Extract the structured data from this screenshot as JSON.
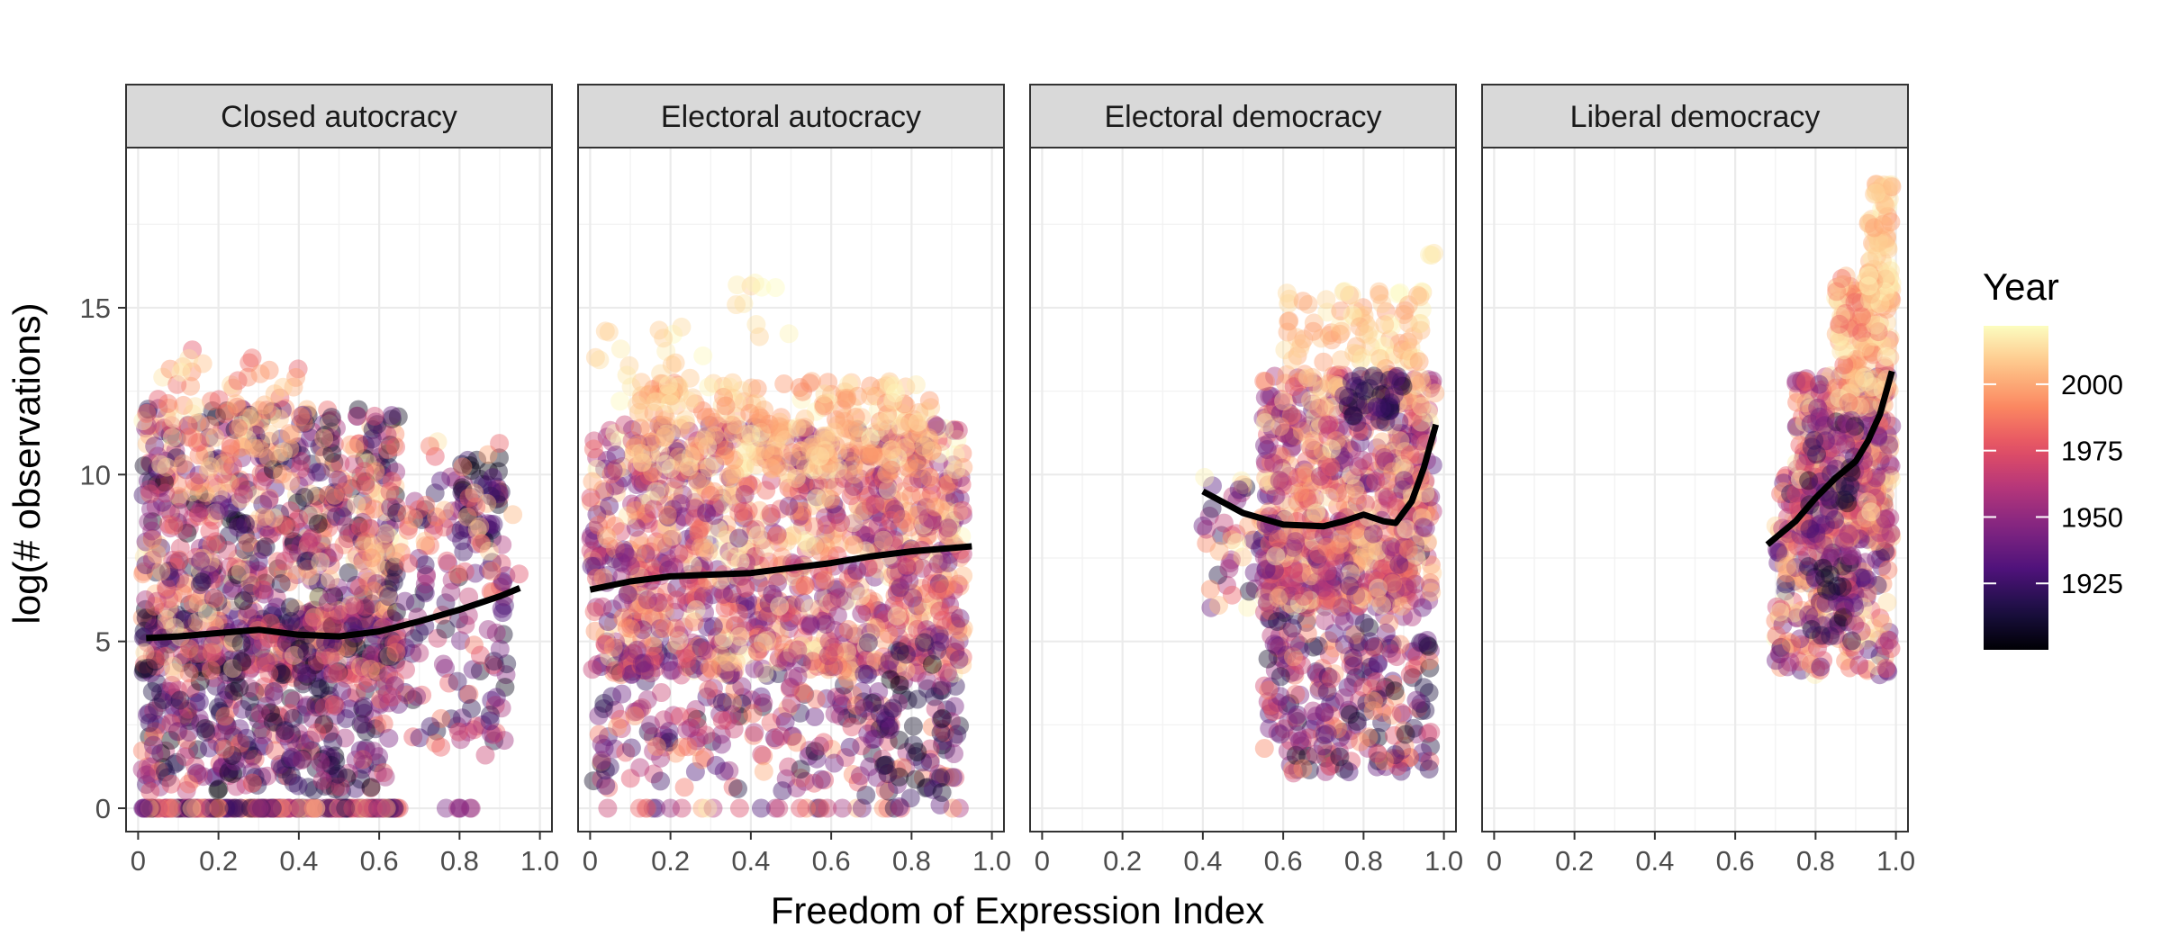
{
  "chart_data": {
    "type": "scatter",
    "xlabel": "Freedom of Expression Index",
    "ylabel": "log(# observations)",
    "xlim": [
      -0.03,
      1.03
    ],
    "ylim": [
      -0.7,
      19.8
    ],
    "x_ticks": [
      0,
      0.2,
      0.4,
      0.6,
      0.8,
      1.0
    ],
    "x_tick_labels": [
      "0",
      "0.2",
      "0.4",
      "0.6",
      "0.8",
      "1.0"
    ],
    "y_ticks": [
      0,
      5,
      10,
      15
    ],
    "y_tick_labels": [
      "0",
      "5",
      "10",
      "15"
    ],
    "grid": true,
    "legend": {
      "title": "Year",
      "position": "right",
      "type": "colorbar",
      "palette": "magma",
      "range": [
        1900,
        2022
      ],
      "ticks": [
        1925,
        1950,
        1975,
        2000
      ],
      "tick_labels": [
        "1925",
        "1950",
        "1975",
        "2000"
      ]
    },
    "colors": {
      "smooth_line": "#000000",
      "strip_fill": "#d9d9d9",
      "panel_border": "#333333",
      "grid": "#ebebeb"
    },
    "panels": [
      {
        "label": "Closed autocracy",
        "x_range": [
          0.01,
          0.95
        ],
        "smooth": [
          [
            0.02,
            5.1
          ],
          [
            0.1,
            5.15
          ],
          [
            0.2,
            5.25
          ],
          [
            0.3,
            5.35
          ],
          [
            0.4,
            5.2
          ],
          [
            0.5,
            5.15
          ],
          [
            0.6,
            5.3
          ],
          [
            0.7,
            5.6
          ],
          [
            0.8,
            5.95
          ],
          [
            0.9,
            6.35
          ],
          [
            0.95,
            6.6
          ]
        ],
        "clusters": [
          {
            "x": [
              0.01,
              0.65
            ],
            "y": [
              0,
              0
            ],
            "n": 240,
            "year": [
              1910,
              2020
            ]
          },
          {
            "x": [
              0.01,
              0.62
            ],
            "y": [
              0.5,
              6
            ],
            "n": 500,
            "year": [
              1900,
              1990
            ]
          },
          {
            "x": [
              0.01,
              0.65
            ],
            "y": [
              4,
              12
            ],
            "n": 750,
            "year": [
              1900,
              2020
            ]
          },
          {
            "x": [
              0.05,
              0.4
            ],
            "y": [
              10,
              13.8
            ],
            "n": 70,
            "year": [
              1975,
              2020
            ]
          },
          {
            "x": [
              0.62,
              0.92
            ],
            "y": [
              1.5,
              10
            ],
            "n": 160,
            "year": [
              1905,
              1990
            ]
          },
          {
            "x": [
              0.8,
              0.9
            ],
            "y": [
              8,
              10.6
            ],
            "n": 30,
            "year": [
              1900,
              1935
            ]
          },
          {
            "x": [
              0.75,
              0.84
            ],
            "y": [
              0,
              0
            ],
            "n": 6,
            "year": [
              1925,
              1965
            ]
          },
          {
            "x": [
              0.55,
              0.95
            ],
            "y": [
              7,
              11
            ],
            "n": 40,
            "year": [
              1970,
              2015
            ]
          }
        ]
      },
      {
        "label": "Electoral autocracy",
        "x_range": [
          0.0,
          0.95
        ],
        "smooth": [
          [
            0.0,
            6.55
          ],
          [
            0.1,
            6.8
          ],
          [
            0.2,
            6.95
          ],
          [
            0.3,
            7.0
          ],
          [
            0.4,
            7.05
          ],
          [
            0.5,
            7.2
          ],
          [
            0.6,
            7.35
          ],
          [
            0.7,
            7.55
          ],
          [
            0.8,
            7.7
          ],
          [
            0.9,
            7.8
          ],
          [
            0.95,
            7.85
          ]
        ],
        "clusters": [
          {
            "x": [
              0.0,
              0.92
            ],
            "y": [
              0,
              0
            ],
            "n": 30,
            "year": [
              1910,
              2020
            ]
          },
          {
            "x": [
              0.0,
              0.92
            ],
            "y": [
              0.5,
              5
            ],
            "n": 300,
            "year": [
              1905,
              2000
            ]
          },
          {
            "x": [
              0.0,
              0.93
            ],
            "y": [
              4,
              11.5
            ],
            "n": 1200,
            "year": [
              1930,
              2022
            ]
          },
          {
            "x": [
              0.1,
              0.85
            ],
            "y": [
              10,
              12.8
            ],
            "n": 250,
            "year": [
              1990,
              2022
            ]
          },
          {
            "x": [
              0.35,
              0.5
            ],
            "y": [
              14,
              16
            ],
            "n": 10,
            "year": [
              2008,
              2022
            ]
          },
          {
            "x": [
              0.0,
              0.3
            ],
            "y": [
              12,
              14.5
            ],
            "n": 25,
            "year": [
              2005,
              2022
            ]
          },
          {
            "x": [
              0.68,
              0.88
            ],
            "y": [
              0,
              5
            ],
            "n": 50,
            "year": [
              1900,
              1945
            ]
          }
        ]
      },
      {
        "label": "Electoral democracy",
        "x_range": [
          0.4,
          0.98
        ],
        "smooth": [
          [
            0.4,
            9.5
          ],
          [
            0.5,
            8.85
          ],
          [
            0.6,
            8.5
          ],
          [
            0.7,
            8.45
          ],
          [
            0.75,
            8.6
          ],
          [
            0.8,
            8.8
          ],
          [
            0.85,
            8.6
          ],
          [
            0.88,
            8.55
          ],
          [
            0.92,
            9.2
          ],
          [
            0.95,
            10.2
          ],
          [
            0.98,
            11.5
          ]
        ],
        "clusters": [
          {
            "x": [
              0.4,
              0.6
            ],
            "y": [
              6,
              10
            ],
            "n": 60,
            "year": [
              1910,
              2022
            ]
          },
          {
            "x": [
              0.55,
              0.97
            ],
            "y": [
              1,
              8
            ],
            "n": 350,
            "year": [
              1905,
              2000
            ]
          },
          {
            "x": [
              0.55,
              0.98
            ],
            "y": [
              6,
              13
            ],
            "n": 700,
            "year": [
              1930,
              2022
            ]
          },
          {
            "x": [
              0.6,
              0.95
            ],
            "y": [
              12,
              15.5
            ],
            "n": 120,
            "year": [
              1995,
              2022
            ]
          },
          {
            "x": [
              0.75,
              0.9
            ],
            "y": [
              11.5,
              13
            ],
            "n": 40,
            "year": [
              1905,
              1935
            ]
          },
          {
            "x": [
              0.96,
              0.98
            ],
            "y": [
              16.5,
              17
            ],
            "n": 3,
            "year": [
              2010,
              2022
            ]
          }
        ]
      },
      {
        "label": "Liberal democracy",
        "x_range": [
          0.68,
          0.99
        ],
        "smooth": [
          [
            0.68,
            7.9
          ],
          [
            0.75,
            8.6
          ],
          [
            0.8,
            9.3
          ],
          [
            0.85,
            9.9
          ],
          [
            0.9,
            10.4
          ],
          [
            0.93,
            11.0
          ],
          [
            0.96,
            11.8
          ],
          [
            0.99,
            13.1
          ]
        ],
        "clusters": [
          {
            "x": [
              0.7,
              0.99
            ],
            "y": [
              4,
              10
            ],
            "n": 300,
            "year": [
              1920,
              2022
            ]
          },
          {
            "x": [
              0.75,
              0.99
            ],
            "y": [
              8,
              13
            ],
            "n": 350,
            "year": [
              1930,
              2022
            ]
          },
          {
            "x": [
              0.85,
              0.99
            ],
            "y": [
              12,
              16
            ],
            "n": 150,
            "year": [
              1980,
              2022
            ]
          },
          {
            "x": [
              0.93,
              0.99
            ],
            "y": [
              15,
              18.8
            ],
            "n": 80,
            "year": [
              1995,
              2022
            ]
          },
          {
            "x": [
              0.78,
              0.9
            ],
            "y": [
              5,
              12
            ],
            "n": 80,
            "year": [
              1900,
              1960
            ]
          }
        ]
      }
    ]
  }
}
